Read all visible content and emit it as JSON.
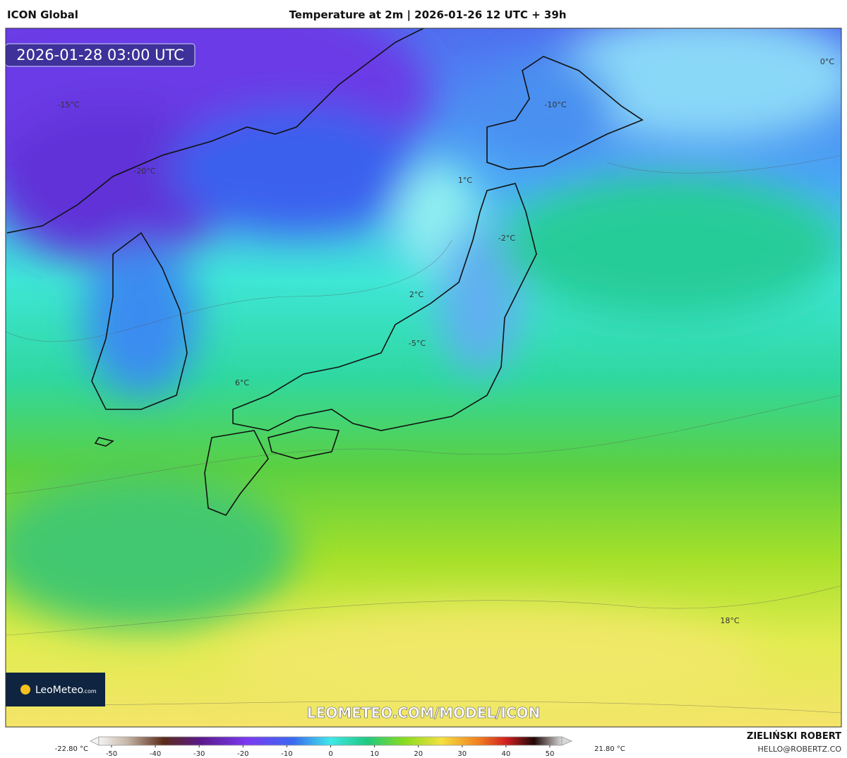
{
  "header": {
    "model": "ICON Global",
    "title": "Temperature at 2m | 2026-01-26 12 UTC + 39h"
  },
  "map": {
    "valid_time": "2026-01-28 03:00 UTC",
    "labels": [
      "-15°C",
      "-20°C",
      "-10°C",
      "0°C",
      "1°C",
      "-2°C",
      "2°C",
      "-5°C",
      "6°C",
      "18°C"
    ],
    "logo": {
      "name": "LeoMeteo",
      "suffix": ".com"
    },
    "watermark": "LEOMETEO.COM/MODEL/ICON"
  },
  "colorbar": {
    "min_label": "-22.80 °C",
    "max_label": "21.80 °C",
    "ticks": [
      -50,
      -40,
      -30,
      -20,
      -10,
      0,
      10,
      20,
      30,
      40,
      50
    ]
  },
  "footer": {
    "author": "ZIELIŃSKI ROBERT",
    "email": "HELLO@ROBERTZ.CO"
  }
}
